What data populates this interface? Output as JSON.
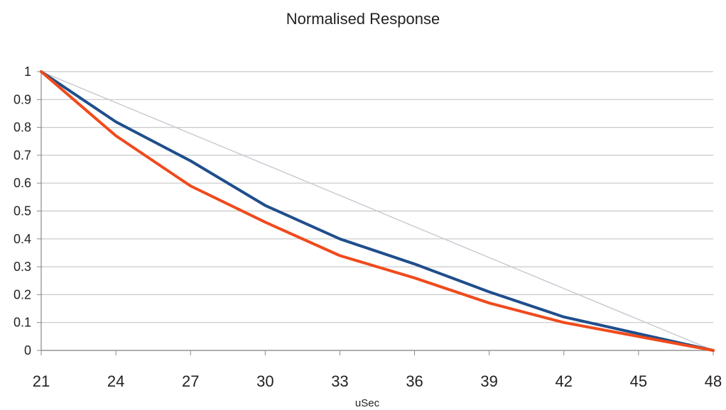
{
  "chart_data": {
    "type": "line",
    "title": "Normalised Response",
    "xlabel": "uSec",
    "ylabel": "",
    "x": [
      21,
      24,
      27,
      30,
      33,
      36,
      39,
      42,
      45,
      48
    ],
    "xlim": [
      21,
      48
    ],
    "ylim": [
      0,
      1
    ],
    "y_ticks": [
      "0",
      "0.1",
      "0.2",
      "0.3",
      "0.4",
      "0.5",
      "0.6",
      "0.7",
      "0.8",
      "0.9",
      "1"
    ],
    "x_ticks": [
      "21",
      "24",
      "27",
      "30",
      "33",
      "36",
      "39",
      "42",
      "45",
      "48"
    ],
    "grid": true,
    "legend": "none",
    "series": [
      {
        "color": "#1f4e8c",
        "values": [
          1.0,
          0.82,
          0.68,
          0.52,
          0.4,
          0.31,
          0.21,
          0.12,
          0.06,
          0.0
        ]
      },
      {
        "color": "#f04a1c",
        "values": [
          1.0,
          0.77,
          0.59,
          0.46,
          0.34,
          0.26,
          0.17,
          0.1,
          0.05,
          0.0
        ]
      },
      {
        "color": "#c4c8cf",
        "values": [
          1.0,
          0.889,
          0.778,
          0.667,
          0.556,
          0.444,
          0.333,
          0.222,
          0.111,
          0.0
        ]
      }
    ]
  }
}
